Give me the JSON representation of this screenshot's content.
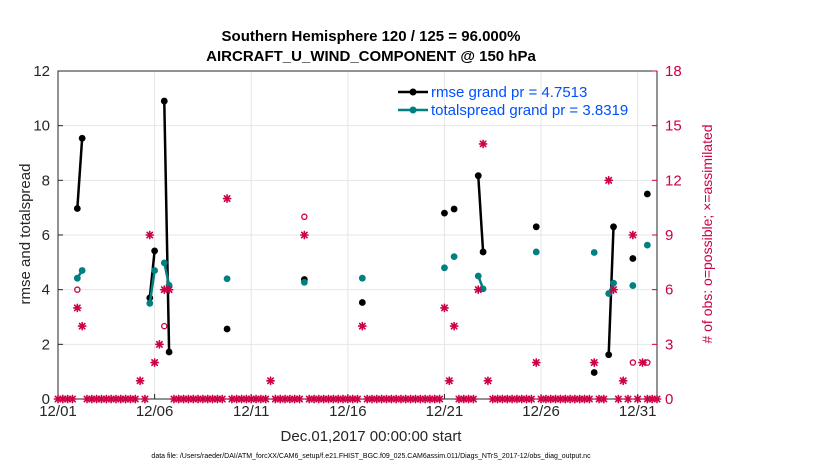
{
  "chart_data": {
    "type": "line",
    "title_line1": "Southern Hemisphere 120 / 125 = 96.000%",
    "title_line2": "AIRCRAFT_U_WIND_COMPONENT @ 150 hPa",
    "xlabel": "Dec.01,2017 00:00:00 start",
    "ylabel_left": "rmse and totalspread",
    "ylabel_right": "# of obs: o=possible; ×=assimilated",
    "footer": "data file: /Users/raeder/DAI/ATM_forcXX/CAM6_setup/f.e21.FHIST_BGC.f09_025.CAM6assim.011/Diags_NTrS_2017-12/obs_diag_output.nc",
    "x_tick_labels": [
      "12/01",
      "12/06",
      "12/11",
      "12/16",
      "12/21",
      "12/26",
      "12/31"
    ],
    "x_tick_values": [
      1,
      6,
      11,
      16,
      21,
      26,
      31
    ],
    "x_range": [
      1,
      32
    ],
    "y_left_range": [
      0,
      12
    ],
    "y_left_ticks": [
      "0",
      "2",
      "4",
      "6",
      "8",
      "10",
      "12"
    ],
    "y_right_range": [
      0,
      18
    ],
    "y_right_ticks": [
      "0",
      "3",
      "6",
      "9",
      "12",
      "15",
      "18"
    ],
    "colors": {
      "rmse": "#000000",
      "spread": "#008080",
      "obs": "#cc0044",
      "legend_text": "#0050ff",
      "grid": "#e6e6e6"
    },
    "series": [
      {
        "name": "rmse grand pr = 4.7513",
        "axis": "left",
        "points": [
          [
            2.0,
            6.97
          ],
          [
            2.25,
            9.54
          ],
          [
            5.75,
            3.7
          ],
          [
            6.0,
            5.42
          ],
          [
            6.5,
            10.9
          ],
          [
            6.75,
            1.72
          ],
          [
            9.75,
            2.56
          ],
          [
            13.75,
            4.37
          ],
          [
            16.75,
            3.53
          ],
          [
            21.0,
            6.8
          ],
          [
            21.5,
            6.95
          ],
          [
            22.75,
            8.17
          ],
          [
            23.0,
            5.38
          ],
          [
            25.75,
            6.3
          ],
          [
            28.75,
            0.97
          ],
          [
            29.5,
            1.62
          ],
          [
            29.75,
            6.3
          ],
          [
            30.75,
            5.14
          ],
          [
            31.5,
            7.5
          ]
        ]
      },
      {
        "name": "totalspread grand pr = 3.8319",
        "axis": "left",
        "points": [
          [
            2.0,
            4.42
          ],
          [
            2.25,
            4.7
          ],
          [
            5.75,
            3.5
          ],
          [
            6.0,
            4.7
          ],
          [
            6.5,
            4.98
          ],
          [
            6.75,
            4.16
          ],
          [
            9.75,
            4.4
          ],
          [
            13.75,
            4.27
          ],
          [
            16.75,
            4.42
          ],
          [
            21.0,
            4.8
          ],
          [
            21.5,
            5.21
          ],
          [
            22.75,
            4.5
          ],
          [
            23.0,
            4.03
          ],
          [
            25.75,
            5.38
          ],
          [
            28.75,
            5.36
          ],
          [
            29.5,
            3.86
          ],
          [
            29.75,
            4.24
          ],
          [
            30.75,
            4.15
          ],
          [
            31.5,
            5.63
          ]
        ]
      }
    ],
    "obs_possible": [
      [
        2.0,
        6
      ],
      [
        6.5,
        4
      ],
      [
        13.75,
        10
      ],
      [
        30.75,
        2
      ],
      [
        31.5,
        2
      ]
    ],
    "obs_assimilated": [
      [
        2.0,
        5
      ],
      [
        2.25,
        4
      ],
      [
        5.25,
        1
      ],
      [
        5.75,
        9
      ],
      [
        6.0,
        2
      ],
      [
        6.25,
        3
      ],
      [
        6.5,
        6
      ],
      [
        6.75,
        6
      ],
      [
        9.75,
        11
      ],
      [
        12.0,
        1
      ],
      [
        13.75,
        9
      ],
      [
        16.75,
        4
      ],
      [
        21.0,
        5
      ],
      [
        21.25,
        1
      ],
      [
        21.5,
        4
      ],
      [
        22.75,
        6
      ],
      [
        23.0,
        14
      ],
      [
        23.25,
        1
      ],
      [
        25.75,
        2
      ],
      [
        28.75,
        2
      ],
      [
        29.5,
        12
      ],
      [
        29.75,
        6
      ],
      [
        30.25,
        1
      ],
      [
        30.75,
        9
      ],
      [
        31.25,
        2
      ]
    ],
    "zero_obs_x_spacing": 0.25,
    "legend_position": "top-right"
  }
}
